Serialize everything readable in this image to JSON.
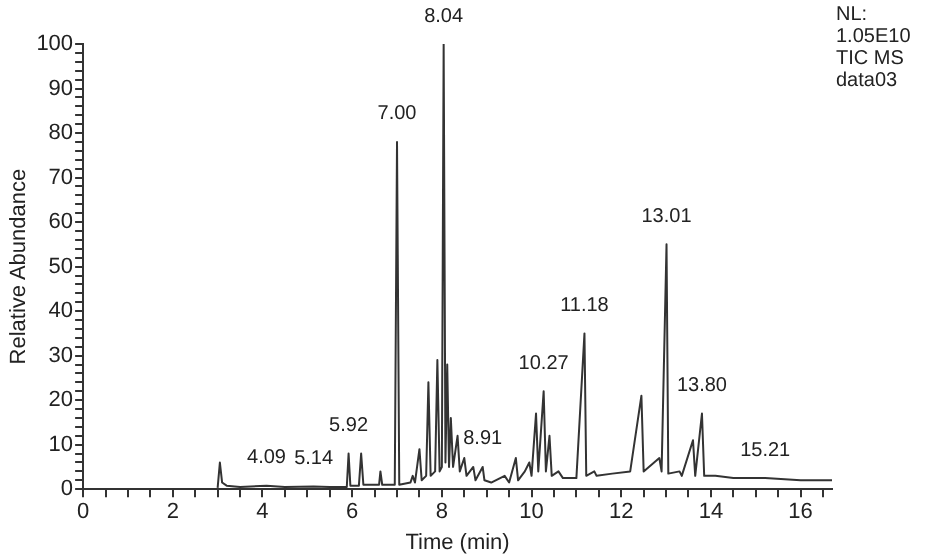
{
  "chart_data": {
    "type": "line",
    "xlabel": "Time (min)",
    "ylabel": "Relative Abundance",
    "annotations": [
      "NL:",
      "1.05E10",
      "TIC MS",
      "data03",
      {
        "text": "4.09",
        "x": 4.09,
        "y": 0.8
      },
      {
        "text": "5.14",
        "x": 5.14,
        "y": 0.6
      },
      {
        "text": "5.92",
        "x": 5.92,
        "y": 8
      },
      {
        "text": "7.00",
        "x": 7.0,
        "y": 78
      },
      {
        "text": "8.04",
        "x": 8.04,
        "y": 100
      },
      {
        "text": "8.91",
        "x": 8.91,
        "y": 5
      },
      {
        "text": "10.27",
        "x": 10.27,
        "y": 22
      },
      {
        "text": "11.18",
        "x": 11.18,
        "y": 35
      },
      {
        "text": "13.01",
        "x": 13.01,
        "y": 55
      },
      {
        "text": "13.80",
        "x": 13.8,
        "y": 17
      },
      {
        "text": "15.21",
        "x": 15.21,
        "y": 2.5
      }
    ],
    "series": [
      {
        "color": "#333333",
        "x": [
          3.0,
          3.05,
          3.1,
          3.2,
          3.5,
          4.09,
          4.5,
          5.14,
          5.5,
          5.88,
          5.92,
          5.96,
          6.15,
          6.2,
          6.25,
          6.6,
          6.63,
          6.67,
          6.95,
          7.0,
          7.05,
          7.3,
          7.35,
          7.4,
          7.5,
          7.55,
          7.65,
          7.7,
          7.75,
          7.85,
          7.9,
          7.95,
          8.0,
          8.04,
          8.08,
          8.12,
          8.16,
          8.2,
          8.25,
          8.35,
          8.4,
          8.5,
          8.55,
          8.7,
          8.75,
          8.91,
          8.95,
          9.1,
          9.4,
          9.5,
          9.65,
          9.7,
          9.85,
          9.95,
          10.0,
          10.1,
          10.15,
          10.27,
          10.32,
          10.4,
          10.45,
          10.6,
          10.7,
          11.0,
          11.18,
          11.22,
          11.4,
          11.45,
          11.8,
          12.2,
          12.45,
          12.5,
          12.85,
          12.9,
          13.01,
          13.05,
          13.3,
          13.35,
          13.6,
          13.65,
          13.8,
          13.85,
          14.1,
          14.5,
          15.21,
          16.0,
          16.7
        ],
        "values": [
          0.3,
          6,
          1.5,
          0.8,
          0.5,
          0.8,
          0.5,
          0.6,
          0.5,
          0.5,
          8,
          0.8,
          0.8,
          8,
          1,
          1,
          4,
          1,
          1,
          78,
          1,
          1.5,
          3,
          1.5,
          9,
          2,
          3,
          24,
          3,
          4,
          29,
          4,
          5,
          100,
          6,
          28,
          5,
          16,
          5,
          12,
          4,
          7,
          3,
          5,
          2,
          5,
          2,
          1.5,
          3,
          1.5,
          7,
          2,
          4,
          6,
          3,
          17,
          4,
          22,
          4,
          12,
          3,
          4,
          2.5,
          2.5,
          35,
          3,
          4,
          3,
          3.5,
          4,
          21,
          4,
          7,
          4,
          55,
          3.5,
          4,
          3,
          11,
          3,
          17,
          3,
          3,
          2.5,
          2.5,
          2,
          2
        ]
      }
    ],
    "xlim": [
      0,
      16.7
    ],
    "xticks": [
      0,
      {
        "value": 0.5,
        "label": null
      },
      {
        "value": 1,
        "label": null
      },
      {
        "value": 1.5,
        "label": null
      },
      2,
      {
        "value": 2.5,
        "label": null
      },
      {
        "value": 3,
        "label": null
      },
      {
        "value": 3.5,
        "label": null
      },
      4,
      {
        "value": 4.5,
        "label": null
      },
      {
        "value": 5,
        "label": null
      },
      {
        "value": 5.5,
        "label": null
      },
      6,
      {
        "value": 6.5,
        "label": null
      },
      {
        "value": 7,
        "label": null
      },
      {
        "value": 7.5,
        "label": null
      },
      8,
      {
        "value": 8.5,
        "label": null
      },
      {
        "value": 9,
        "label": null
      },
      {
        "value": 9.5,
        "label": null
      },
      10,
      {
        "value": 10.5,
        "label": null
      },
      {
        "value": 11,
        "label": null
      },
      {
        "value": 11.5,
        "label": null
      },
      12,
      {
        "value": 12.5,
        "label": null
      },
      {
        "value": 13,
        "label": null
      },
      {
        "value": 13.5,
        "label": null
      },
      14,
      {
        "value": 14.5,
        "label": null
      },
      {
        "value": 15,
        "label": null
      },
      {
        "value": 15.5,
        "label": null
      },
      16,
      {
        "value": 16.5,
        "label": null
      }
    ],
    "ylim": [
      0,
      100
    ],
    "yticks": [
      0,
      {
        "value": 2,
        "label": null
      },
      {
        "value": 4,
        "label": null
      },
      {
        "value": 6,
        "label": null
      },
      {
        "value": 8,
        "label": null
      },
      10,
      {
        "value": 12,
        "label": null
      },
      {
        "value": 14,
        "label": null
      },
      {
        "value": 16,
        "label": null
      },
      {
        "value": 18,
        "label": null
      },
      20,
      {
        "value": 22,
        "label": null
      },
      {
        "value": 24,
        "label": null
      },
      {
        "value": 26,
        "label": null
      },
      {
        "value": 28,
        "label": null
      },
      30,
      {
        "value": 32,
        "label": null
      },
      {
        "value": 34,
        "label": null
      },
      {
        "value": 36,
        "label": null
      },
      {
        "value": 38,
        "label": null
      },
      40,
      {
        "value": 42,
        "label": null
      },
      {
        "value": 44,
        "label": null
      },
      {
        "value": 46,
        "label": null
      },
      {
        "value": 48,
        "label": null
      },
      50,
      {
        "value": 52,
        "label": null
      },
      {
        "value": 54,
        "label": null
      },
      {
        "value": 56,
        "label": null
      },
      {
        "value": 58,
        "label": null
      },
      60,
      {
        "value": 62,
        "label": null
      },
      {
        "value": 64,
        "label": null
      },
      {
        "value": 66,
        "label": null
      },
      {
        "value": 68,
        "label": null
      },
      70,
      {
        "value": 72,
        "label": null
      },
      {
        "value": 74,
        "label": null
      },
      {
        "value": 76,
        "label": null
      },
      {
        "value": 78,
        "label": null
      },
      80,
      {
        "value": 82,
        "label": null
      },
      {
        "value": 84,
        "label": null
      },
      {
        "value": 86,
        "label": null
      },
      {
        "value": 88,
        "label": null
      },
      90,
      {
        "value": 92,
        "label": null
      },
      {
        "value": 94,
        "label": null
      },
      {
        "value": 96,
        "label": null
      },
      {
        "value": 98,
        "label": null
      },
      100
    ],
    "grid": false,
    "legend": false,
    "marker": "none",
    "line_style": "solid"
  }
}
